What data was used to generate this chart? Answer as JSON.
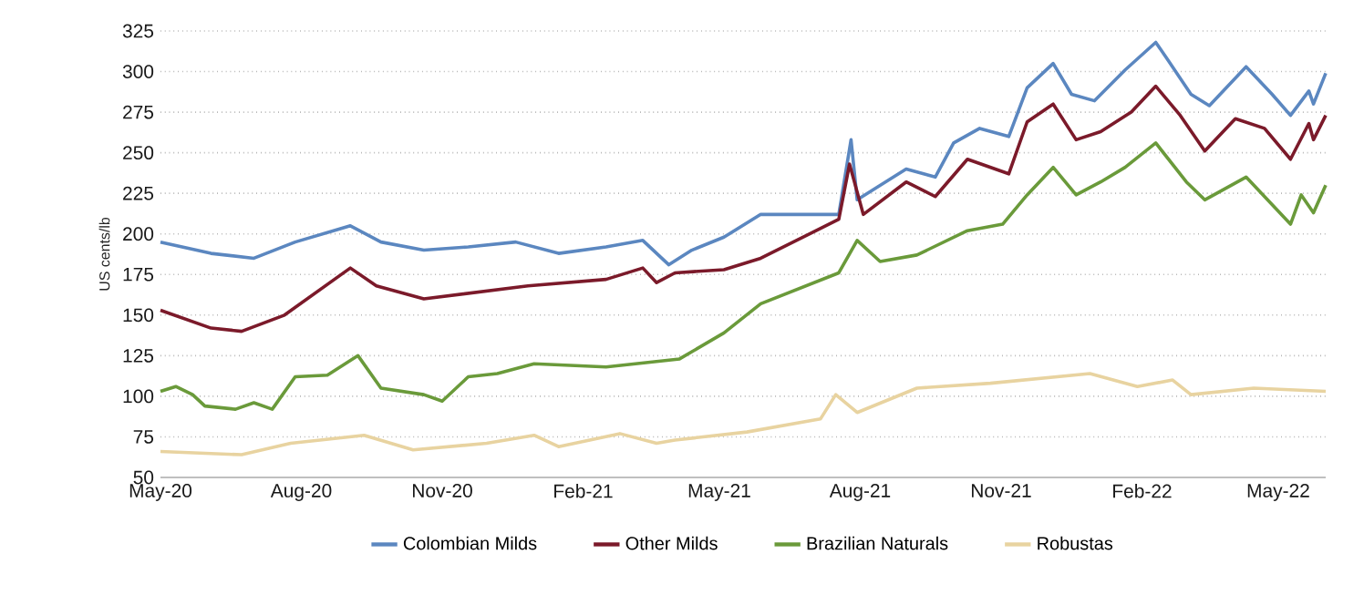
{
  "chart_data": {
    "type": "line",
    "ylabel": "US cents/lb",
    "xlim": [
      "2020-05-01",
      "2022-06-01"
    ],
    "xticks": [
      {
        "value": "2020-05-01",
        "label": "May-20"
      },
      {
        "value": "2020-08-01",
        "label": "Aug-20"
      },
      {
        "value": "2020-11-01",
        "label": "Nov-20"
      },
      {
        "value": "2021-02-01",
        "label": "Feb-21"
      },
      {
        "value": "2021-05-01",
        "label": "May-21"
      },
      {
        "value": "2021-08-01",
        "label": "Aug-21"
      },
      {
        "value": "2021-11-01",
        "label": "Nov-21"
      },
      {
        "value": "2022-02-01",
        "label": "Feb-22"
      },
      {
        "value": "2022-05-01",
        "label": "May-22"
      }
    ],
    "ylim": [
      50,
      325
    ],
    "yticks": [
      50,
      75,
      100,
      125,
      150,
      175,
      200,
      225,
      250,
      275,
      300,
      325
    ],
    "grid": "y",
    "legend": "bottom",
    "marker": "none",
    "line_style": "solid",
    "series": [
      {
        "name": "Colombian Milds",
        "color": "#5b87c0",
        "x": [
          "2020-05-01",
          "2020-06-03",
          "2020-07-01",
          "2020-07-28",
          "2020-09-02",
          "2020-09-22",
          "2020-10-20",
          "2020-11-18",
          "2020-12-19",
          "2021-01-16",
          "2021-02-16",
          "2021-03-12",
          "2021-03-29",
          "2021-04-13",
          "2021-05-04",
          "2021-05-28",
          "2021-07-18",
          "2021-07-26",
          "2021-07-30",
          "2021-08-31",
          "2021-09-19",
          "2021-10-01",
          "2021-10-18",
          "2021-11-06",
          "2021-11-18",
          "2021-12-05",
          "2021-12-17",
          "2022-01-01",
          "2022-01-21",
          "2022-02-10",
          "2022-02-18",
          "2022-03-05",
          "2022-03-17",
          "2022-04-10",
          "2022-04-27",
          "2022-05-09",
          "2022-05-21",
          "2022-05-24",
          "2022-06-01"
        ],
        "values": [
          195,
          188,
          185,
          195,
          205,
          195,
          190,
          192,
          195,
          188,
          192,
          196,
          181,
          190,
          198,
          212,
          212,
          258,
          221,
          240,
          235,
          256,
          265,
          260,
          290,
          305,
          286,
          282,
          301,
          318,
          307,
          286,
          279,
          303,
          286,
          273,
          288,
          280,
          299
        ]
      },
      {
        "name": "Other Milds",
        "color": "#7b1a2a",
        "x": [
          "2020-05-01",
          "2020-06-03",
          "2020-06-23",
          "2020-07-21",
          "2020-09-02",
          "2020-09-19",
          "2020-10-20",
          "2020-12-27",
          "2021-02-16",
          "2021-03-12",
          "2021-03-21",
          "2021-04-02",
          "2021-05-04",
          "2021-05-28",
          "2021-07-18",
          "2021-07-25",
          "2021-08-03",
          "2021-08-31",
          "2021-09-19",
          "2021-10-10",
          "2021-11-06",
          "2021-11-18",
          "2021-12-05",
          "2021-12-20",
          "2022-01-05",
          "2022-01-25",
          "2022-02-10",
          "2022-02-26",
          "2022-03-14",
          "2022-04-03",
          "2022-04-22",
          "2022-05-09",
          "2022-05-21",
          "2022-05-24",
          "2022-06-01"
        ],
        "values": [
          153,
          142,
          140,
          150,
          179,
          168,
          160,
          168,
          172,
          179,
          170,
          176,
          178,
          185,
          209,
          243,
          212,
          232,
          223,
          246,
          237,
          269,
          280,
          258,
          263,
          275,
          291,
          273,
          251,
          271,
          265,
          246,
          268,
          258,
          273
        ]
      },
      {
        "name": "Brazilian Naturals",
        "color": "#6a9a3a",
        "x": [
          "2020-05-01",
          "2020-05-11",
          "2020-05-22",
          "2020-05-30",
          "2020-06-19",
          "2020-07-01",
          "2020-07-13",
          "2020-07-28",
          "2020-08-18",
          "2020-09-07",
          "2020-09-22",
          "2020-10-20",
          "2020-11-01",
          "2020-11-18",
          "2020-12-07",
          "2020-12-31",
          "2021-02-16",
          "2021-04-05",
          "2021-05-04",
          "2021-05-28",
          "2021-07-18",
          "2021-07-30",
          "2021-08-14",
          "2021-09-07",
          "2021-10-10",
          "2021-11-02",
          "2021-11-18",
          "2021-12-05",
          "2021-12-20",
          "2022-01-05",
          "2022-01-21",
          "2022-02-10",
          "2022-03-02",
          "2022-03-14",
          "2022-04-10",
          "2022-05-09",
          "2022-05-16",
          "2022-05-24",
          "2022-06-01"
        ],
        "values": [
          103,
          106,
          101,
          94,
          92,
          96,
          92,
          112,
          113,
          125,
          105,
          101,
          97,
          112,
          114,
          120,
          118,
          123,
          139,
          157,
          176,
          196,
          183,
          187,
          202,
          206,
          224,
          241,
          224,
          232,
          241,
          256,
          232,
          221,
          235,
          206,
          224,
          213,
          230
        ]
      },
      {
        "name": "Robustas",
        "color": "#e8d3a0",
        "x": [
          "2020-05-01",
          "2020-06-23",
          "2020-07-25",
          "2020-09-11",
          "2020-10-13",
          "2020-11-30",
          "2020-12-31",
          "2021-01-16",
          "2021-02-25",
          "2021-03-21",
          "2021-04-02",
          "2021-05-19",
          "2021-07-06",
          "2021-07-16",
          "2021-07-30",
          "2021-09-07",
          "2021-10-25",
          "2021-12-29",
          "2022-01-29",
          "2022-02-21",
          "2022-03-05",
          "2022-04-15",
          "2022-06-01"
        ],
        "values": [
          66,
          64,
          71,
          76,
          67,
          71,
          76,
          69,
          77,
          71,
          73,
          78,
          86,
          101,
          90,
          105,
          108,
          114,
          106,
          110,
          101,
          105,
          103
        ]
      }
    ]
  }
}
